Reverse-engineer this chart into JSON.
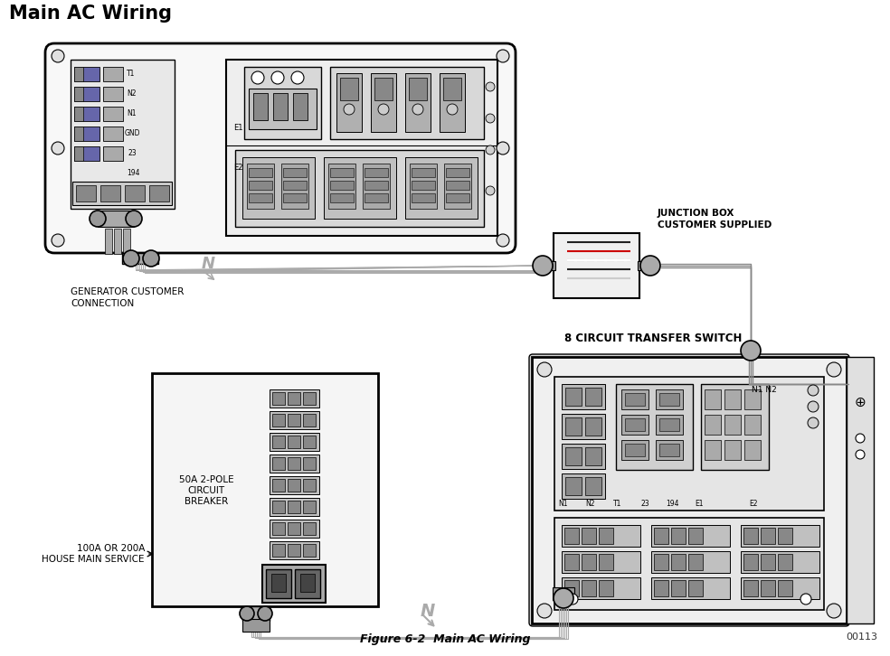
{
  "title": "Main AC Wiring",
  "figure_caption": "Figure 6-2  Main AC Wiring",
  "ref_number": "00113",
  "bg_color": "#ffffff",
  "label_gen_customer": "GENERATOR CUSTOMER\nCONNECTION",
  "label_junction_box": "JUNCTION BOX\nCUSTOMER SUPPLIED",
  "label_transfer_switch": "8 CIRCUIT TRANSFER SWITCH",
  "label_breaker": "50A 2-POLE\nCIRCUIT\nBREAKER",
  "label_house_main": "100A OR 200A\nHOUSE MAIN SERVICE"
}
